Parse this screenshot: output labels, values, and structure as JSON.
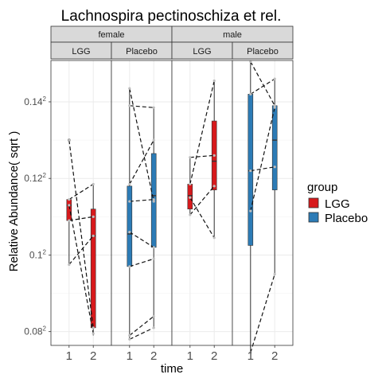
{
  "chart_data": {
    "type": "box",
    "title": "Lachnospira pectinoschiza et rel.",
    "xlabel": "time",
    "ylabel": "Relative Abundance( sqrt )",
    "ylim": [
      0.0764,
      0.1508
    ],
    "y_ticks": [
      {
        "value": 0.08,
        "base": "0.08",
        "sup": "2"
      },
      {
        "value": 0.1,
        "base": "0.1",
        "sup": "2"
      },
      {
        "value": 0.12,
        "base": "0.12",
        "sup": "2"
      },
      {
        "value": 0.14,
        "base": "0.14",
        "sup": "2"
      }
    ],
    "x_categories": [
      "1",
      "2"
    ],
    "legend": {
      "title": "group",
      "placement": "right",
      "entries": [
        {
          "name": "LGG",
          "color": "#d7191c"
        },
        {
          "name": "Placebo",
          "color": "#2c7bb6"
        }
      ]
    },
    "facet_rows": [
      "female",
      "male"
    ],
    "panels": [
      {
        "sex": "female",
        "group": "LGG",
        "color": "#d7191c",
        "boxes": [
          {
            "x": "1",
            "min": 0.0975,
            "q1": 0.109,
            "median": 0.113,
            "q3": 0.1145,
            "max": 0.1145
          },
          {
            "x": "2",
            "min": 0.079,
            "q1": 0.081,
            "median": 0.105,
            "q3": 0.112,
            "max": 0.1185
          }
        ],
        "outliers": [
          {
            "x": "1",
            "value": 0.13
          }
        ],
        "paired_lines": [
          [
            0.1145,
            0.1185
          ],
          [
            0.113,
            0.0795
          ],
          [
            0.109,
            0.11
          ],
          [
            0.0975,
            0.105
          ],
          [
            0.13,
            0.081
          ]
        ]
      },
      {
        "sex": "female",
        "group": "Placebo",
        "color": "#2c7bb6",
        "boxes": [
          {
            "x": "1",
            "min": 0.078,
            "q1": 0.097,
            "median": 0.1055,
            "q3": 0.118,
            "max": 0.1435
          },
          {
            "x": "2",
            "min": 0.081,
            "q1": 0.102,
            "median": 0.1155,
            "q3": 0.1265,
            "max": 0.1385
          }
        ],
        "outliers": [],
        "paired_lines": [
          [
            0.1435,
            0.114
          ],
          [
            0.139,
            0.1385
          ],
          [
            0.1185,
            0.13
          ],
          [
            0.114,
            0.1145
          ],
          [
            0.106,
            0.102
          ],
          [
            0.097,
            0.099
          ],
          [
            0.079,
            0.084
          ],
          [
            0.078,
            0.081
          ]
        ]
      },
      {
        "sex": "male",
        "group": "LGG",
        "color": "#d7191c",
        "boxes": [
          {
            "x": "1",
            "min": 0.1105,
            "q1": 0.112,
            "median": 0.1155,
            "q3": 0.1185,
            "max": 0.1255
          },
          {
            "x": "2",
            "min": 0.1045,
            "q1": 0.117,
            "median": 0.1245,
            "q3": 0.135,
            "max": 0.1455
          }
        ],
        "outliers": [],
        "paired_lines": [
          [
            0.1255,
            0.126
          ],
          [
            0.1185,
            0.1455
          ],
          [
            0.115,
            0.1045
          ],
          [
            0.1105,
            0.118
          ]
        ]
      },
      {
        "sex": "male",
        "group": "Placebo",
        "color": "#2c7bb6",
        "boxes": [
          {
            "x": "1",
            "min": 0.0745,
            "q1": 0.1025,
            "median": 0.122,
            "q3": 0.142,
            "max": 0.1505
          },
          {
            "x": "2",
            "min": 0.095,
            "q1": 0.117,
            "median": 0.13,
            "q3": 0.139,
            "max": 0.146
          }
        ],
        "outliers": [],
        "paired_lines": [
          [
            0.1505,
            0.139
          ],
          [
            0.142,
            0.146
          ],
          [
            0.122,
            0.123
          ],
          [
            0.1115,
            0.1385
          ],
          [
            0.0745,
            0.095
          ]
        ]
      }
    ]
  }
}
